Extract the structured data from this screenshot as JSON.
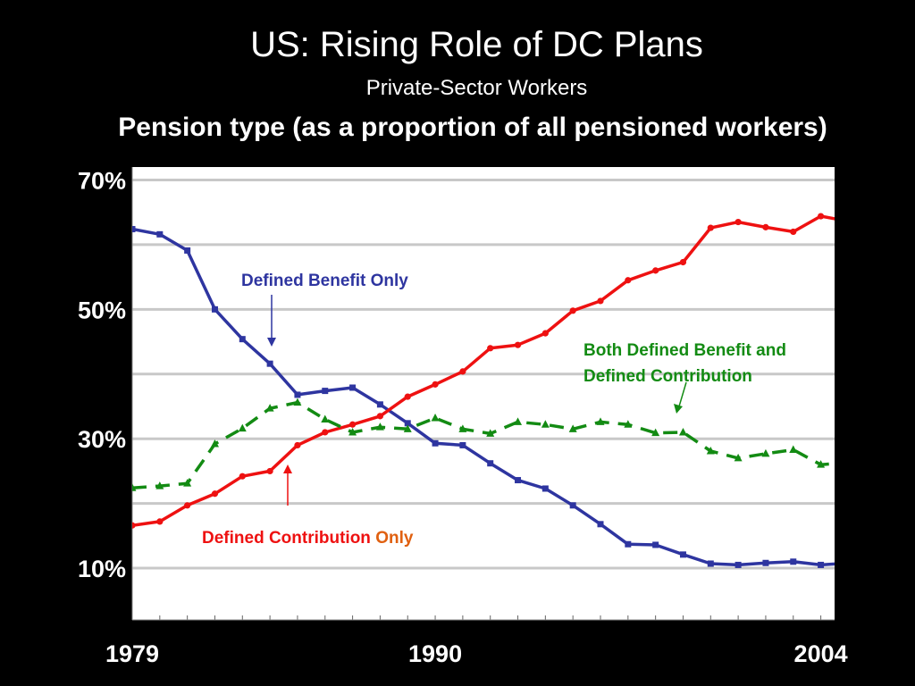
{
  "title": "US: Rising Role of DC Plans",
  "subtitle": "Private-Sector Workers",
  "heading": "Pension type (as a proportion of all pensioned workers)",
  "chart_data": {
    "type": "line",
    "x": [
      1979,
      1980,
      1981,
      1982,
      1983,
      1984,
      1985,
      1986,
      1987,
      1988,
      1989,
      1990,
      1991,
      1992,
      1993,
      1994,
      1995,
      1996,
      1997,
      1998,
      1999,
      2000,
      2001,
      2002,
      2003,
      2004,
      2005
    ],
    "ylim": [
      2,
      72
    ],
    "xlim": [
      1979,
      2004.5
    ],
    "grid": true,
    "ytick_labels": [
      {
        "value": 70,
        "label": "70%"
      },
      {
        "value": 50,
        "label": "50%"
      },
      {
        "value": 30,
        "label": "30%"
      },
      {
        "value": 10,
        "label": "10%"
      }
    ],
    "xtick_labels": [
      {
        "value": 1979,
        "label": "1979"
      },
      {
        "value": 1990,
        "label": "1990"
      },
      {
        "value": 2004,
        "label": "2004"
      }
    ],
    "series": [
      {
        "name": "Defined Benefit Only",
        "color": "#2e35a0",
        "marker": "square",
        "dash": "solid",
        "values": [
          62.4,
          61.6,
          59.1,
          50.0,
          45.4,
          41.6,
          36.8,
          37.4,
          37.9,
          35.3,
          32.4,
          29.3,
          29.0,
          26.2,
          23.6,
          22.3,
          19.7,
          16.8,
          13.7,
          13.6,
          12.1,
          10.7,
          10.5,
          10.8,
          11.0,
          10.5,
          10.8
        ]
      },
      {
        "name": "Defined Contribution Only",
        "color": "#ee1111",
        "marker": "circle",
        "dash": "solid",
        "values": [
          16.6,
          17.2,
          19.7,
          21.5,
          24.2,
          25.0,
          29.0,
          31.0,
          32.2,
          33.5,
          36.5,
          38.4,
          40.4,
          44.0,
          44.5,
          46.3,
          49.8,
          51.3,
          54.5,
          56.0,
          57.3,
          62.6,
          63.5,
          62.7,
          62.0,
          64.4,
          63.6
        ]
      },
      {
        "name": "Both Defined Benefit and Defined Contribution",
        "color": "#138b13",
        "marker": "triangle",
        "dash": "dashed",
        "values": [
          22.4,
          22.7,
          23.1,
          29.2,
          31.6,
          34.7,
          35.6,
          33.0,
          31.0,
          31.8,
          31.5,
          33.2,
          31.5,
          30.8,
          32.6,
          32.2,
          31.5,
          32.6,
          32.2,
          30.9,
          31.0,
          28.1,
          27.0,
          27.7,
          28.3,
          26.0,
          26.3
        ]
      }
    ],
    "annotations": [
      {
        "text": "Defined Benefit Only",
        "color": "#2e35a0"
      },
      {
        "text": "Both Defined Benefit and",
        "color": "#138b13"
      },
      {
        "text": "Defined Contribution",
        "color": "#138b13"
      },
      {
        "text": "Defined Contribution ",
        "color": "#ee1111"
      },
      {
        "text": "Only",
        "color": "#e06010"
      }
    ]
  }
}
